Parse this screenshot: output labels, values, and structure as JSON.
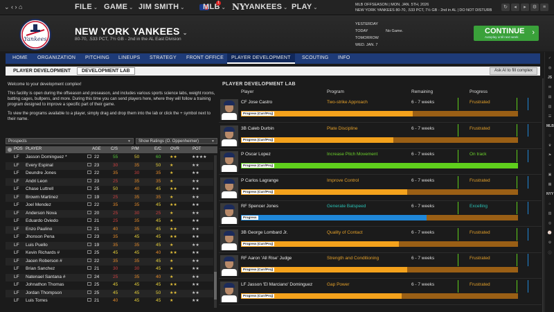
{
  "topbar": {
    "menus": [
      {
        "label": "FILE"
      },
      {
        "label": "GAME"
      },
      {
        "label": "JIM SMITH"
      },
      {
        "label": "MLB"
      },
      {
        "label": "YANKEES"
      },
      {
        "label": "PLAY"
      }
    ],
    "notification_count": "1",
    "date_line1": "MLB OFFSEASON | MON. JAN. 5TH, 2026",
    "date_line2": "NEW YORK YANKEES 80-70, .533 PCT, 7½ GB - 2nd in AL | DO NOT DISTURB"
  },
  "header": {
    "team_name": "NEW YORK YANKEES",
    "record": "80-70, .533 PCT, 7½ GB - 2nd in the AL East Division",
    "schedule": [
      {
        "day": "YESTERDAY",
        "game": ""
      },
      {
        "day": "TODAY",
        "game": "No Game."
      },
      {
        "day": "TOMORROW",
        "game": ""
      },
      {
        "day": "WED. JAN. 7",
        "game": ""
      }
    ],
    "continue_label": "CONTINUE",
    "continue_sub": "Autoplay until next week"
  },
  "nav": {
    "items": [
      "HOME",
      "ORGANIZATION",
      "PITCHING",
      "LINEUPS",
      "STRATEGY",
      "FRONT OFFICE",
      "PLAYER DEVELOPMENT",
      "SCOUTING",
      "INFO"
    ],
    "active": "PLAYER DEVELOPMENT"
  },
  "subnav": {
    "items": [
      "PLAYER DEVELOPMENT",
      "DEVELOPMENT LAB"
    ],
    "active": "DEVELOPMENT LAB",
    "ask_ai": "Ask AI to fill complex"
  },
  "intro": {
    "welcome": "Welcome to your development complex!",
    "p1": "This facility is open during the offseason and preseason, and includes various sports science labs, weight rooms, batting cages, bullpens, and more. During this time you can send players here, where they will follow a training program designed to improve a specific part of their game.",
    "p2": "To view the programs available to a player, simply drag and drop them into the lab or click the + symbol next to their name."
  },
  "filters": {
    "group": "Prospects",
    "ratings": "Show Ratings (O. Oppenheimer)"
  },
  "table": {
    "columns": [
      "POS",
      "PLAYER",
      "AGE",
      "C/S",
      "P/M",
      "E/C",
      "OVR",
      "POT"
    ],
    "rows": [
      {
        "pos": "LF",
        "name": "Jasson Dominguez *",
        "age": "22",
        "cs": "55",
        "pm": "50",
        "ec": "60",
        "ovr": "★★",
        "pot": "★★★★"
      },
      {
        "pos": "LF",
        "name": "Every Espinal",
        "age": "23",
        "cs": "30",
        "pm": "35",
        "ec": "50",
        "ovr": "★",
        "pot": "★★"
      },
      {
        "pos": "LF",
        "name": "Deundre Jones",
        "age": "22",
        "cs": "35",
        "pm": "30",
        "ec": "35",
        "ovr": "★",
        "pot": "★★"
      },
      {
        "pos": "LF",
        "name": "Andri Leon",
        "age": "23",
        "cs": "25",
        "pm": "35",
        "ec": "35",
        "ovr": "★",
        "pot": "★★"
      },
      {
        "pos": "LF",
        "name": "Chase Luttrell",
        "age": "25",
        "cs": "50",
        "pm": "40",
        "ec": "45",
        "ovr": "★★",
        "pot": "★★"
      },
      {
        "pos": "LF",
        "name": "Browm Martinez",
        "age": "19",
        "cs": "25",
        "pm": "35",
        "ec": "35",
        "ovr": "★",
        "pot": "★★"
      },
      {
        "pos": "LF",
        "name": "Joel Mendez",
        "age": "22",
        "cs": "35",
        "pm": "35",
        "ec": "45",
        "ovr": "★★",
        "pot": "★★"
      },
      {
        "pos": "LF",
        "name": "Anderson Nova",
        "age": "20",
        "cs": "25",
        "pm": "30",
        "ec": "25",
        "ovr": "★",
        "pot": "★★"
      },
      {
        "pos": "LF",
        "name": "Eduardo Oviedo",
        "age": "21",
        "cs": "25",
        "pm": "35",
        "ec": "45",
        "ovr": "★",
        "pot": "★★"
      },
      {
        "pos": "LF",
        "name": "Enzo Paulino",
        "age": "21",
        "cs": "40",
        "pm": "35",
        "ec": "45",
        "ovr": "★★",
        "pot": "★★"
      },
      {
        "pos": "LF",
        "name": "Jhonson Pena",
        "age": "23",
        "cs": "35",
        "pm": "45",
        "ec": "45",
        "ovr": "★★",
        "pot": "★★"
      },
      {
        "pos": "LF",
        "name": "Luis Puello",
        "age": "19",
        "cs": "35",
        "pm": "35",
        "ec": "45",
        "ovr": "★",
        "pot": "★★"
      },
      {
        "pos": "LF",
        "name": "Kevin Richards #",
        "age": "25",
        "cs": "45",
        "pm": "45",
        "ec": "40",
        "ovr": "★★",
        "pot": "★★"
      },
      {
        "pos": "LF",
        "name": "Jacen Roberson #",
        "age": "22",
        "cs": "35",
        "pm": "35",
        "ec": "45",
        "ovr": "★",
        "pot": "★★"
      },
      {
        "pos": "LF",
        "name": "Brian Sanchez",
        "age": "21",
        "cs": "30",
        "pm": "30",
        "ec": "45",
        "ovr": "★",
        "pot": "★★"
      },
      {
        "pos": "LF",
        "name": "Natenael Santana #",
        "age": "24",
        "cs": "25",
        "pm": "35",
        "ec": "40",
        "ovr": "★",
        "pot": "★★"
      },
      {
        "pos": "LF",
        "name": "Johnathon Thomas",
        "age": "25",
        "cs": "45",
        "pm": "45",
        "ec": "45",
        "ovr": "★★",
        "pot": "★★"
      },
      {
        "pos": "LF",
        "name": "Jordan Thompson",
        "age": "25",
        "cs": "45",
        "pm": "45",
        "ec": "50",
        "ovr": "★★",
        "pot": "★★"
      },
      {
        "pos": "LF",
        "name": "Luis Torres",
        "age": "21",
        "cs": "40",
        "pm": "45",
        "ec": "45",
        "ovr": "★",
        "pot": "★★"
      }
    ]
  },
  "lab": {
    "title": "PLAYER DEVELOPMENT LAB",
    "columns": [
      "Player",
      "Program",
      "Remaining",
      "Progress"
    ],
    "bar_tag_default": "Progress (Curr/Proj)",
    "bar_tag_alt": "Progress",
    "rows": [
      {
        "player": "CF Jose Castro",
        "program": "Two-strike Approach",
        "remaining": "6 - 7 weeks",
        "status": "Frustrated",
        "status_color": "#e5a12a",
        "tag": "Progress (Curr/Proj)",
        "fill": 0.62,
        "fill_color": "#f4a21c"
      },
      {
        "player": "3B Caleb Durbin",
        "program": "Plate Discipline",
        "remaining": "6 - 7 weeks",
        "status": "Frustrated",
        "status_color": "#e5a12a",
        "tag": "Progress (Curr/Proj)",
        "fill": 0.55,
        "fill_color": "#f4a21c"
      },
      {
        "player": "P Oscar Lopez",
        "program": "Increase Pitch Movement",
        "remaining": "6 - 7 weeks",
        "status": "On track",
        "status_color": "#6cd12c",
        "tag": "Progress (Curr/Proj)",
        "fill": 1.0,
        "fill_color": "#5fcf1c"
      },
      {
        "player": "P Carlos Lagrange",
        "program": "Improve Control",
        "remaining": "6 - 7 weeks",
        "status": "Frustrated",
        "status_color": "#e5a12a",
        "tag": "Progress (Curr/Proj)",
        "fill": 0.6,
        "fill_color": "#f4a21c"
      },
      {
        "player": "RF Spencer Jones",
        "program": "Generate Batspeed",
        "remaining": "6 - 7 weeks",
        "status": "Excelling",
        "status_color": "#2ac1b5",
        "tag": "Progress",
        "fill": 0.67,
        "fill_color": "#1f87d8"
      },
      {
        "player": "3B George Lombard Jr.",
        "program": "Quality of Contact",
        "remaining": "6 - 7 weeks",
        "status": "Frustrated",
        "status_color": "#e5a12a",
        "tag": "Progress (Curr/Proj)",
        "fill": 0.57,
        "fill_color": "#f4a21c"
      },
      {
        "player": "RF Aaron 'All Rise' Judge",
        "program": "Strength and Conditioning",
        "remaining": "6 - 7 weeks",
        "status": "Frustrated",
        "status_color": "#e5a12a",
        "tag": "Progress (Curr/Proj)",
        "fill": 0.6,
        "fill_color": "#f4a21c"
      },
      {
        "player": "LF Jasson 'El Marciano' Dominguez",
        "program": "Gap Power",
        "remaining": "6 - 7 weeks",
        "status": "Frustrated",
        "status_color": "#e5a12a",
        "tag": "Progress (Curr/Proj)",
        "fill": 0.58,
        "fill_color": "#f4a21c"
      }
    ]
  },
  "colors": {
    "accent_nav": "#1e3b78",
    "continue_green": "#3aa13a",
    "bar_track": "#9a5f15"
  }
}
